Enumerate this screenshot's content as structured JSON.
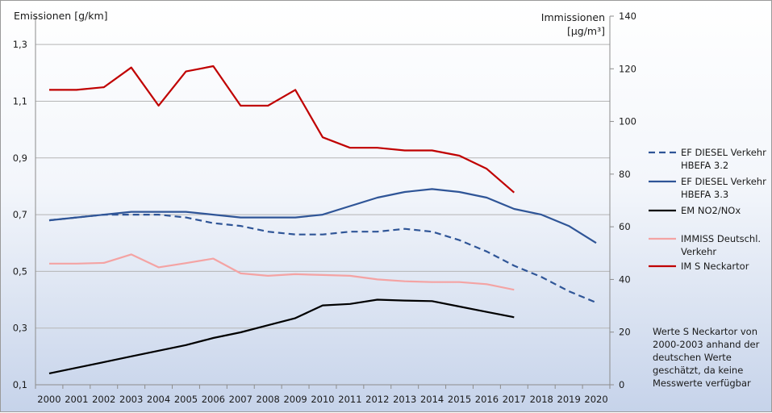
{
  "chart_data": {
    "type": "line",
    "categories": [
      "2000",
      "2001",
      "2002",
      "2003",
      "2004",
      "2005",
      "2006",
      "2007",
      "2008",
      "2009",
      "2010",
      "2011",
      "2012",
      "2013",
      "2014",
      "2015",
      "2016",
      "2017",
      "2018",
      "2019",
      "2020"
    ],
    "y_left": {
      "label": "Emissionen [g/km]",
      "range": [
        0.1,
        1.4
      ],
      "ticks": [
        "0,1",
        "0,3",
        "0,5",
        "0,7",
        "0,9",
        "1,1",
        "1,3"
      ],
      "tick_values": [
        0.1,
        0.3,
        0.5,
        0.7,
        0.9,
        1.1,
        1.3
      ]
    },
    "y_right": {
      "label_line1": "Immissionen",
      "label_line2": "[µg/m³]",
      "range": [
        0,
        140
      ],
      "ticks": [
        "0",
        "20",
        "40",
        "60",
        "80",
        "100",
        "120",
        "140"
      ],
      "tick_values": [
        0,
        20,
        40,
        60,
        80,
        100,
        120,
        140
      ]
    },
    "grid": true,
    "series": [
      {
        "name_line1": "EF DIESEL Verkehr",
        "name_line2": "HBEFA 3.2",
        "axis": "left",
        "color": "#2f5597",
        "dashed": true,
        "values": [
          0.68,
          0.69,
          0.7,
          0.7,
          0.7,
          0.69,
          0.67,
          0.66,
          0.64,
          0.63,
          0.63,
          0.64,
          0.64,
          0.65,
          0.64,
          0.61,
          0.57,
          0.52,
          0.48,
          0.43,
          0.39
        ]
      },
      {
        "name_line1": "EF DIESEL Verkehr",
        "name_line2": "HBEFA 3.3",
        "axis": "left",
        "color": "#2f5597",
        "dashed": false,
        "values": [
          0.68,
          0.69,
          0.7,
          0.71,
          0.71,
          0.71,
          0.7,
          0.69,
          0.69,
          0.69,
          0.7,
          0.73,
          0.76,
          0.78,
          0.79,
          0.78,
          0.76,
          0.72,
          0.7,
          0.66,
          0.6
        ]
      },
      {
        "name_line1": "EM NO2/NOx",
        "name_line2": "",
        "axis": "left",
        "color": "#000000",
        "dashed": false,
        "values": [
          0.14,
          0.16,
          0.18,
          0.2,
          0.22,
          0.24,
          0.265,
          0.285,
          0.31,
          0.335,
          0.38,
          0.385,
          0.4,
          0.397,
          0.395,
          0.376,
          0.357,
          0.338,
          null,
          null,
          null
        ]
      },
      {
        "name_line1": "IMMISS Deutschl.",
        "name_line2": "Verkehr",
        "axis": "right",
        "color": "#f4a3a3",
        "dashed": false,
        "values": [
          46,
          46,
          46.3,
          49.5,
          44.6,
          46.2,
          47.9,
          42.3,
          41.4,
          42,
          41.7,
          41.4,
          40,
          39.3,
          39,
          39,
          38.2,
          36.1,
          null,
          null,
          null
        ]
      },
      {
        "name_line1": "IM S Neckartor",
        "name_line2": "",
        "axis": "right",
        "color": "#c00000",
        "dashed": false,
        "values": [
          112,
          112,
          113,
          120.5,
          106,
          119,
          121,
          106,
          106,
          112,
          94,
          90,
          90,
          89,
          89,
          87,
          82,
          73,
          null,
          null,
          null
        ]
      }
    ],
    "note": [
      "Werte S Neckartor von",
      "2000-2003 anhand der",
      "deutschen Werte",
      "geschätzt, da keine",
      "Messwerte verfügbar"
    ]
  }
}
